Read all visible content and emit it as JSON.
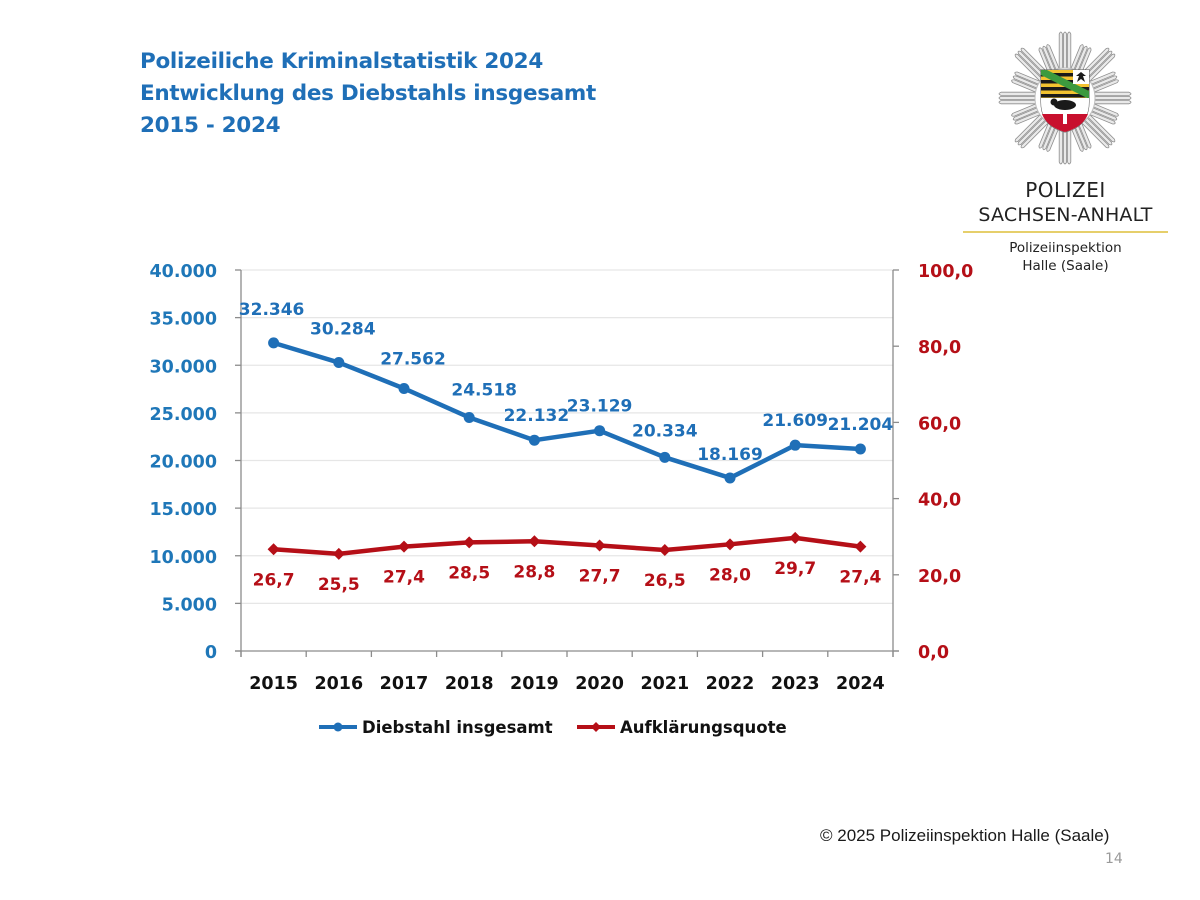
{
  "header": {
    "title_line1": "Polizeiliche Kriminalstatistik 2024",
    "title_line2": "Entwicklung des Diebstahls insgesamt",
    "title_line3": "2015 - 2024"
  },
  "logo": {
    "icon": "police-star-emblem-icon",
    "line1": "POLIZEI",
    "line2": "SACHSEN-ANHALT",
    "line3": "Polizeiinspektion",
    "line4": "Halle (Saale)"
  },
  "footer": {
    "copyright": "© 2025 Polizeiinspektion Halle (Saale)",
    "page_number": "14"
  },
  "colors": {
    "title_blue": "#1f6fb7",
    "series_blue": "#1f6fb7",
    "axis_left_blue": "#1f77b8",
    "series_red": "#b50f17",
    "axis_right_red": "#b50f17",
    "grid": "#e6e6e6",
    "axis": "#8c8c8c"
  },
  "chart_data": {
    "type": "line",
    "title": "Entwicklung des Diebstahls insgesamt 2015 - 2024",
    "categories": [
      "2015",
      "2016",
      "2017",
      "2018",
      "2019",
      "2020",
      "2021",
      "2022",
      "2023",
      "2024"
    ],
    "series": [
      {
        "name": "Diebstahl insgesamt",
        "axis": "left",
        "marker": "circle",
        "values": [
          32346,
          30284,
          27562,
          24518,
          22132,
          23129,
          20334,
          18169,
          21609,
          21204
        ],
        "labels": [
          "32.346",
          "30.284",
          "27.562",
          "24.518",
          "22.132",
          "23.129",
          "20.334",
          "18.169",
          "21.609",
          "21.204"
        ]
      },
      {
        "name": "Aufklärungsquote",
        "axis": "right",
        "marker": "diamond",
        "values": [
          26.7,
          25.5,
          27.4,
          28.5,
          28.8,
          27.7,
          26.5,
          28.0,
          29.7,
          27.4
        ],
        "labels": [
          "26,7",
          "25,5",
          "27,4",
          "28,5",
          "28,8",
          "27,7",
          "26,5",
          "28,0",
          "29,7",
          "27,4"
        ]
      }
    ],
    "y_left": {
      "ylim": [
        0,
        40000
      ],
      "ticks": [
        0,
        5000,
        10000,
        15000,
        20000,
        25000,
        30000,
        35000,
        40000
      ],
      "tick_labels": [
        "0",
        "5.000",
        "10.000",
        "15.000",
        "20.000",
        "25.000",
        "30.000",
        "35.000",
        "40.000"
      ]
    },
    "y_right": {
      "ylim": [
        0,
        100
      ],
      "ticks": [
        0,
        20,
        40,
        60,
        80,
        100
      ],
      "tick_labels": [
        "0,0",
        "20,0",
        "40,0",
        "60,0",
        "80,0",
        "100,0"
      ]
    },
    "xlabel": "",
    "ylabel": "",
    "grid": true,
    "legend": {
      "position": "bottom",
      "entries": [
        "Diebstahl insgesamt",
        "Aufklärungsquote"
      ]
    }
  }
}
